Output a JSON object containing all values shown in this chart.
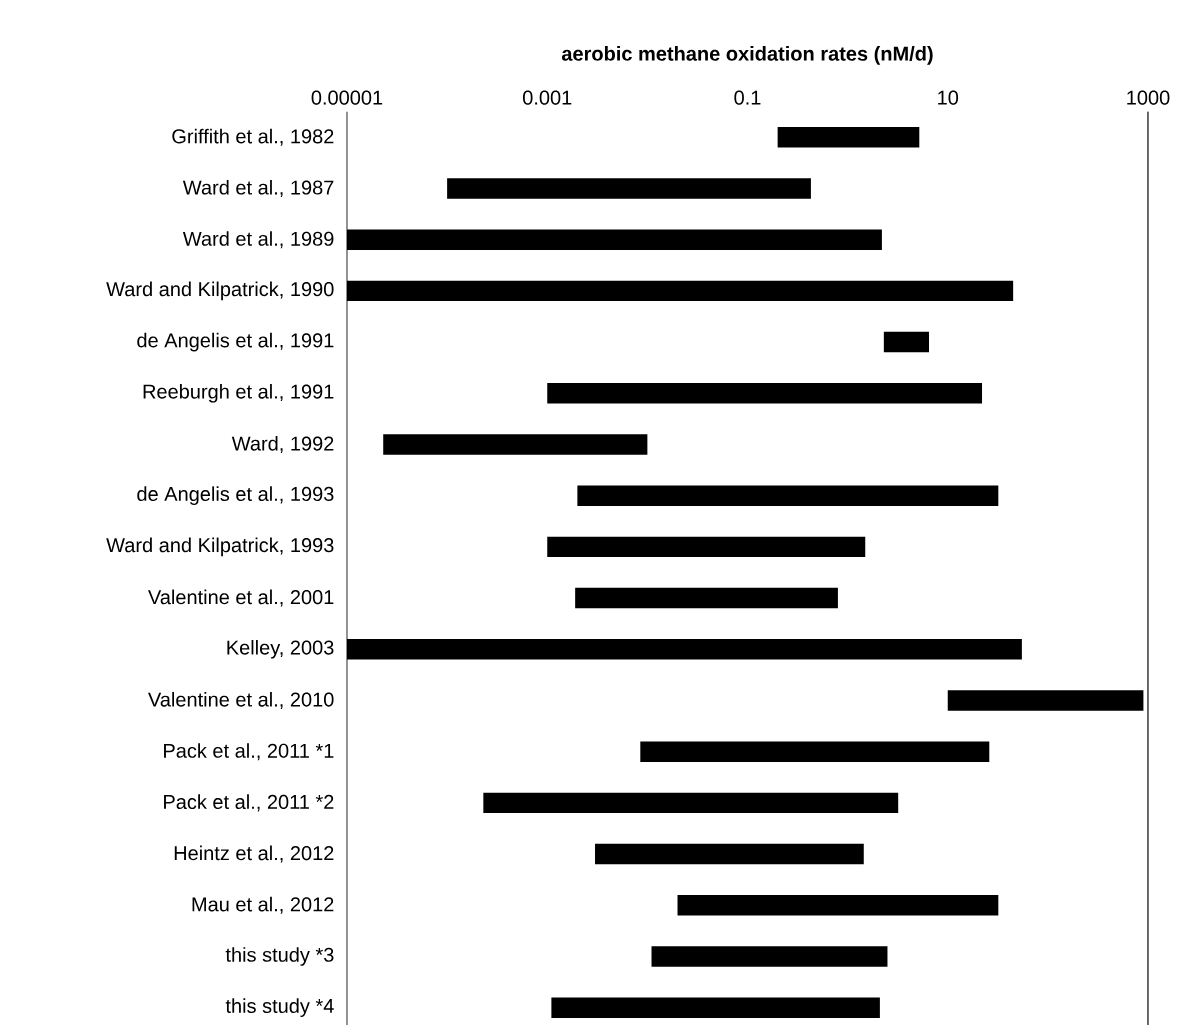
{
  "chart_data": {
    "type": "bar",
    "orientation": "horizontal",
    "log": "x",
    "xlabel": "**aerobic methane oxidation rates (nM/d)**",
    "categories": [
      "Griffith et al., 1982",
      "Ward et al., 1987",
      "Ward et al., 1989",
      "Ward and Kilpatrick, 1990",
      "de Angelis et al., 1991",
      "Reeburgh et al., 1991",
      "Ward, 1992",
      "de Angelis et al., 1993",
      "Ward and Kilpatrick, 1993",
      "Valentine et al., 2001",
      "Kelley, 2003",
      "Valentine et al., 2010",
      "Pack et al., 2011 *1",
      "Pack et al., 2011 *2",
      "Heintz et al., 2012",
      "Mau et al., 2012",
      "this study  *3",
      "this study  *4"
    ],
    "base": [
      0.2,
      0.0001,
      1e-05,
      1e-05,
      2.3,
      0.001,
      2.3e-05,
      0.002,
      0.001,
      0.0019,
      1e-05,
      10,
      0.0085,
      0.00023,
      0.003,
      0.02,
      0.011,
      0.0011
    ],
    "values": [
      5,
      0.4299,
      2.19999,
      44.99999,
      4.2,
      21.999,
      0.009977,
      31.998,
      1.499,
      0.7981,
      54.99999,
      890,
      25.9915,
      3.19977,
      1.447,
      31.98,
      2.489,
      2.0989
    ],
    "color": "#000000",
    "xlim": [
      1e-05,
      1000
    ],
    "xticks": [
      {
        "value": 1e-05,
        "label": "0.00001"
      },
      {
        "value": 0.001,
        "label": "0.001"
      },
      {
        "value": 0.1,
        "label": "0.1"
      },
      {
        "value": 10,
        "label": "10"
      },
      {
        "value": 1000,
        "label": "1000"
      }
    ],
    "grid": false
  }
}
